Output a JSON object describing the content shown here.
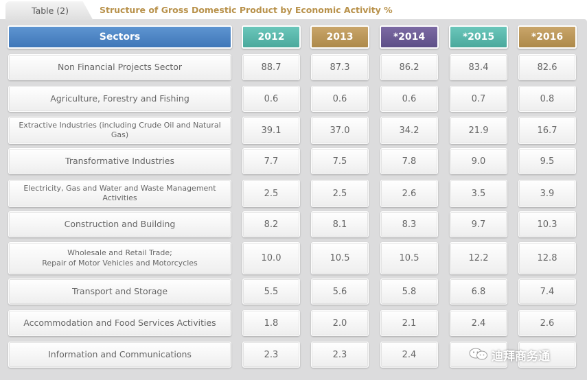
{
  "tab_label": "Table (2)",
  "title": "Structure of Gross Domestic Product by Economic Activity %",
  "headers": {
    "sector": "Sectors",
    "years": [
      "2012",
      "2013",
      "*2014",
      "*2015",
      "*2016"
    ]
  },
  "header_colors": [
    "#4a83c6",
    "#5bb8ab",
    "#bb975a",
    "#6c5c95",
    "#5bb8ab",
    "#bb975a"
  ],
  "rows": [
    {
      "sector": "Non Financial Projects Sector",
      "values": [
        "88.7",
        "87.3",
        "86.2",
        "83.4",
        "82.6"
      ]
    },
    {
      "sector": "Agriculture, Forestry and Fishing",
      "values": [
        "0.6",
        "0.6",
        "0.6",
        "0.7",
        "0.8"
      ]
    },
    {
      "sector": "Extractive Industries (including Crude Oil and Natural Gas)",
      "values": [
        "39.1",
        "37.0",
        "34.2",
        "21.9",
        "16.7"
      ]
    },
    {
      "sector": "Transformative Industries",
      "values": [
        "7.7",
        "7.5",
        "7.8",
        "9.0",
        "9.5"
      ]
    },
    {
      "sector": "Electricity, Gas and Water and Waste Management Activities",
      "values": [
        "2.5",
        "2.5",
        "2.6",
        "3.5",
        "3.9"
      ]
    },
    {
      "sector": "Construction and Building",
      "values": [
        "8.2",
        "8.1",
        "8.3",
        "9.7",
        "10.3"
      ]
    },
    {
      "sector": "Wholesale and Retail Trade;\nRepair of Motor Vehicles and Motorcycles",
      "values": [
        "10.0",
        "10.5",
        "10.5",
        "12.2",
        "12.8"
      ]
    },
    {
      "sector": "Transport and Storage",
      "values": [
        "5.5",
        "5.6",
        "5.8",
        "6.8",
        "7.4"
      ]
    },
    {
      "sector": "Accommodation and Food Services Activities",
      "values": [
        "1.8",
        "2.0",
        "2.1",
        "2.4",
        "2.6"
      ]
    },
    {
      "sector": "Information and Communications",
      "values": [
        "2.3",
        "2.3",
        "2.4",
        "",
        ""
      ]
    }
  ],
  "watermark": "迪拜商务通",
  "watermark_icon": "wechat-icon"
}
